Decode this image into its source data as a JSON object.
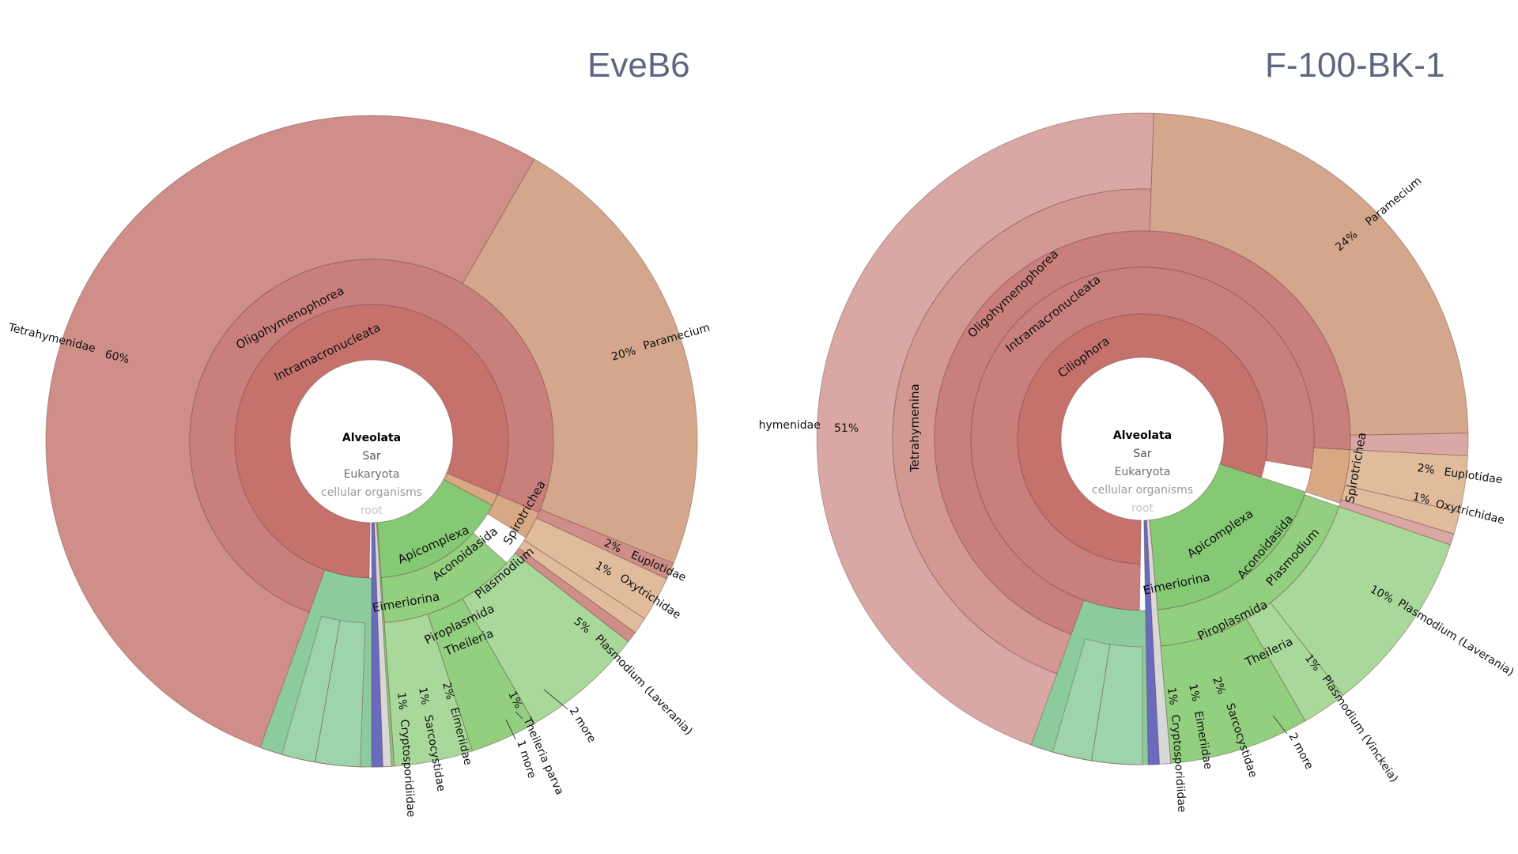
{
  "charts": [
    {
      "title": "EveB6",
      "center": [
        "Alveolata",
        "Sar",
        "Eukaryota",
        "cellular organisms",
        "root"
      ],
      "labels": {
        "tetrahymenidae": "Tetrahymenidae",
        "tetrahymenidae_pct": "60%",
        "paramecium": "Paramecium",
        "paramecium_pct": "20%",
        "oligohymenophorea": "Oligohymenophorea",
        "intramacronucleata": "Intramacronucleata",
        "spirotrichea": "Spirotrichea",
        "euplotidae": "Euplotidae",
        "euplotidae_pct": "2%",
        "oxytrichidae": "Oxytrichidae",
        "oxytrichidae_pct": "1%",
        "apicomplexa": "Apicomplexa",
        "aconoidasida": "Aconoidasida",
        "plasmodium": "Plasmodium",
        "eimeriorina": "Eimeriorina",
        "piroplasmida": "Piroplasmida",
        "theileria": "Theileria",
        "plasmodium_laverania": "Plasmodium (Laverania)",
        "plasmodium_laverania_pct": "5%",
        "two_more": "2 more",
        "theileria_parva": "Theileria parva",
        "theileria_parva_pct": "1%",
        "one_more": "1 more",
        "eimeriidae": "Eimeriidae",
        "eimeriidae_pct": "2%",
        "sarcocystidae": "Sarcocystidae",
        "sarcocystidae_pct": "1%",
        "cryptosporidiidae": "Cryptosporidiidae",
        "cryptosporidiidae_pct": "1%"
      }
    },
    {
      "title": "F-100-BK-1",
      "center": [
        "Alveolata",
        "Sar",
        "Eukaryota",
        "cellular organisms",
        "root"
      ],
      "labels": {
        "tetrahymenidae": "Tetrahymenidae",
        "tetrahymenidae_pct": "51%",
        "tetrahymenina": "Tetrahymenina",
        "paramecium": "Paramecium",
        "paramecium_pct": "24%",
        "oligohymenophorea": "Oligohymenophorea",
        "intramacronucleata": "Intramacronucleata",
        "ciliophora": "Ciliophora",
        "spirotrichea": "Spirotrichea",
        "euplotidae": "Euplotidae",
        "euplotidae_pct": "2%",
        "oxytrichidae": "Oxytrichidae",
        "oxytrichidae_pct": "1%",
        "apicomplexa": "Apicomplexa",
        "aconoidasida": "Aconoidasida",
        "plasmodium": "Plasmodium",
        "eimeriorina": "Eimeriorina",
        "piroplasmida": "Piroplasmida",
        "theileria": "Theileria",
        "plasmodium_laverania": "Plasmodium (Laverania)",
        "plasmodium_laverania_pct": "10%",
        "plasmodium_vinckeia": "Plasmodium (Vinckeia)",
        "plasmodium_vinckeia_pct": "1%",
        "two_more": "2 more",
        "sarcocystidae": "Sarcocystidae",
        "sarcocystidae_pct": "2%",
        "eimeriidae": "Eimeriidae",
        "eimeriidae_pct": "1%",
        "cryptosporidiidae": "Cryptosporidiidae",
        "cryptosporidiidae_pct": "1%"
      }
    }
  ],
  "colors": {
    "ciliophora": "#c5726c",
    "ring_oligo": "#c97f7b",
    "tetrahymenidae_left": "#cf8e88",
    "tetrahymenidae_right": "#daa8a4",
    "tetra_mid_right": "#d49893",
    "paramecium": "#d4a78c",
    "spirotrichea": "#d8a884",
    "spirotrichea_leaf": "#e0bc9c",
    "apicomplexa": "#86c975",
    "aconoidasida": "#92cf7f",
    "plasmodium_leaf": "#a8d99a",
    "eimeriorina": "#8ccb9c",
    "eimeriorina_leaf": "#9dd4ab",
    "root_gray": "#d8d8d8",
    "blue": "#6a6abf"
  }
}
